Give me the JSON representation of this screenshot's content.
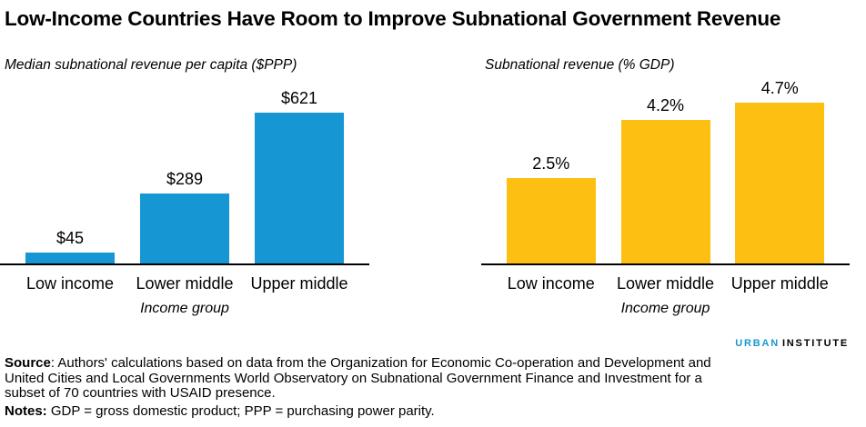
{
  "figure_title": "Low-Income Countries Have Room to Improve Subnational Government Revenue",
  "chart_data": [
    {
      "type": "bar",
      "title": "Median subnational revenue per capita ($PPP)",
      "categories": [
        "Low income",
        "Lower middle",
        "Upper middle"
      ],
      "values": [
        45,
        289,
        621
      ],
      "data_labels": [
        "$45",
        "$289",
        "$621"
      ],
      "xlabel": "Income group",
      "ylabel": "",
      "ylim": [
        0,
        750
      ],
      "bar_color": "#1696d2",
      "grid": false,
      "legend": "none"
    },
    {
      "type": "bar",
      "title": "Subnational revenue (% GDP)",
      "categories": [
        "Low income",
        "Lower middle",
        "Upper middle"
      ],
      "values": [
        2.5,
        4.2,
        4.7
      ],
      "data_labels": [
        "2.5%",
        "4.2%",
        "4.7%"
      ],
      "xlabel": "Income group",
      "ylabel": "",
      "ylim": [
        0,
        5.3
      ],
      "bar_color": "#fdbf11",
      "grid": false,
      "legend": "none"
    }
  ],
  "logo": {
    "part1": "URBAN",
    "part2": "INSTITUTE"
  },
  "footer": {
    "source_label": "Source",
    "source_rest": ": Authors' calculations based on data from the Organization for Economic Co-operation and Development and United Cities and Local Governments World Observatory on Subnational Government Finance and Investment for a subset of 70 countries with USAID presence.",
    "notes_label": "Notes:",
    "notes_rest": " GDP = gross domestic product; PPP = purchasing power parity."
  },
  "colors": {
    "blue": "#1696d2",
    "yellow": "#fdbf11",
    "text": "#000000"
  }
}
